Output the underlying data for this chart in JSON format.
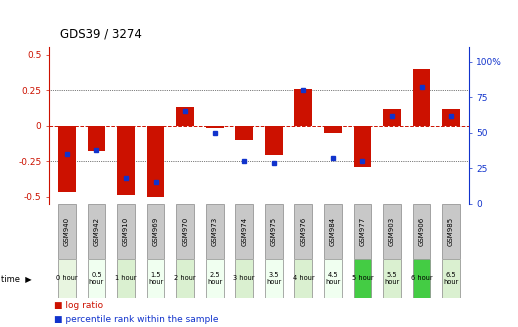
{
  "title": "GDS39 / 3274",
  "samples": [
    "GSM940",
    "GSM942",
    "GSM910",
    "GSM969",
    "GSM970",
    "GSM973",
    "GSM974",
    "GSM975",
    "GSM976",
    "GSM984",
    "GSM977",
    "GSM903",
    "GSM906",
    "GSM985"
  ],
  "time_labels": [
    "0 hour",
    "0.5\nhour",
    "1 hour",
    "1.5\nhour",
    "2 hour",
    "2.5\nhour",
    "3 hour",
    "3.5\nhour",
    "4 hour",
    "4.5\nhour",
    "5 hour",
    "5.5\nhour",
    "6 hour",
    "6.5\nhour"
  ],
  "time_bg_colors": [
    "#e8f5e0",
    "#f0fff0",
    "#daf0d0",
    "#f0fff0",
    "#daf0d0",
    "#f0fff0",
    "#daf0d0",
    "#f0fff0",
    "#daf0d0",
    "#f0fff0",
    "#44cc44",
    "#daf0d0",
    "#44cc44",
    "#daf0d0"
  ],
  "log_ratio": [
    -0.47,
    -0.18,
    -0.49,
    -0.5,
    0.13,
    -0.02,
    -0.1,
    -0.21,
    0.26,
    -0.05,
    -0.29,
    0.12,
    0.4,
    0.12
  ],
  "percentile": [
    35,
    38,
    18,
    15,
    65,
    50,
    30,
    29,
    80,
    32,
    30,
    62,
    82,
    62
  ],
  "ylim_left": [
    -0.55,
    0.55
  ],
  "ylim_right": [
    0,
    110
  ],
  "yticks_left": [
    -0.5,
    -0.25,
    0,
    0.25,
    0.5
  ],
  "yticks_right": [
    0,
    25,
    50,
    75,
    100
  ],
  "ytick_labels_left": [
    "-0.5",
    "-0.25",
    "0",
    "0.25",
    "0.5"
  ],
  "ytick_labels_right": [
    "0",
    "25",
    "50",
    "75",
    "100%"
  ],
  "bar_color": "#cc1100",
  "dot_color": "#1133cc",
  "bar_width": 0.6,
  "header_bg": "#c8c8c8"
}
